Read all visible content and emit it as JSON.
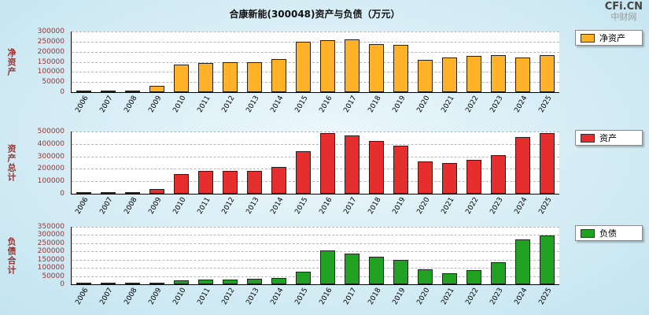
{
  "header": {
    "title": "合康新能(300048)资产与负债（万元）",
    "watermark_line1": "CFi.CN",
    "watermark_line2": "中财网"
  },
  "chart_data": [
    {
      "type": "bar",
      "name": "net-assets",
      "ylabel": "净资产",
      "legend": "净资产",
      "color": "#FFB228",
      "ymax": 300000,
      "ystep": 50000,
      "ylim": [
        0,
        300000
      ],
      "grid": "dashed-horizontal",
      "legend_position": "right",
      "categories": [
        "2006",
        "2007",
        "2008",
        "2009",
        "2010",
        "2011",
        "2012",
        "2013",
        "2014",
        "2015",
        "2016",
        "2017",
        "2018",
        "2019",
        "2020",
        "2021",
        "2022",
        "2023",
        "2024",
        "2025"
      ],
      "values": [
        2000,
        3500,
        9000,
        30000,
        135000,
        145000,
        150000,
        150000,
        163000,
        248000,
        258000,
        262000,
        238000,
        232000,
        160000,
        172000,
        178000,
        183000,
        172000,
        183000
      ]
    },
    {
      "type": "bar",
      "name": "total-assets",
      "ylabel": "资产总计",
      "legend": "资产",
      "color": "#E62E2E",
      "ymax": 500000,
      "ystep": 100000,
      "ylim": [
        0,
        500000
      ],
      "grid": "dashed-horizontal",
      "legend_position": "right",
      "categories": [
        "2006",
        "2007",
        "2008",
        "2009",
        "2010",
        "2011",
        "2012",
        "2013",
        "2014",
        "2015",
        "2016",
        "2017",
        "2018",
        "2019",
        "2020",
        "2021",
        "2022",
        "2023",
        "2024",
        "2025"
      ],
      "values": [
        4000,
        7000,
        15000,
        40000,
        160000,
        183000,
        185000,
        183000,
        215000,
        340000,
        490000,
        470000,
        425000,
        385000,
        262000,
        250000,
        270000,
        310000,
        458000,
        488000
      ]
    },
    {
      "type": "bar",
      "name": "total-liabilities",
      "ylabel": "负债合计",
      "legend": "负债",
      "color": "#21A121",
      "ymax": 350000,
      "ystep": 50000,
      "ylim": [
        0,
        350000
      ],
      "grid": "dashed-horizontal",
      "legend_position": "right",
      "categories": [
        "2006",
        "2007",
        "2008",
        "2009",
        "2010",
        "2011",
        "2012",
        "2013",
        "2014",
        "2015",
        "2016",
        "2017",
        "2018",
        "2019",
        "2020",
        "2021",
        "2022",
        "2023",
        "2024",
        "2025"
      ],
      "values": [
        2000,
        4000,
        8000,
        12000,
        22000,
        27000,
        30000,
        32000,
        38000,
        78000,
        205000,
        185000,
        168000,
        148000,
        92000,
        68000,
        88000,
        135000,
        272000,
        298000
      ]
    }
  ]
}
